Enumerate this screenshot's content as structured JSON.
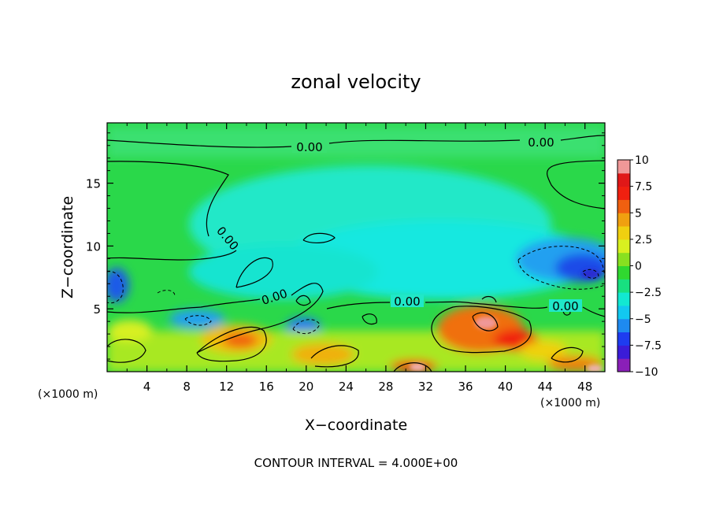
{
  "chart_data": {
    "type": "heatmap",
    "title": "zonal velocity",
    "xlabel": "X−coordinate",
    "ylabel": "Z−coordinate",
    "x_unit_left": "(×1000 m)",
    "x_unit_right": "(×1000 m)",
    "footer": "CONTOUR INTERVAL =  4.000E+00",
    "xlim": [
      0,
      50
    ],
    "ylim": [
      0,
      19.8
    ],
    "x_ticks": [
      4,
      8,
      12,
      16,
      20,
      24,
      28,
      32,
      36,
      40,
      44,
      48
    ],
    "y_ticks": [
      5,
      10,
      15
    ],
    "colorbar": {
      "ticks": [
        "10",
        "7.5",
        "5",
        "2.5",
        "0",
        "−2.5",
        "−5",
        "−7.5",
        "−10"
      ],
      "vmin": -10,
      "vmax": 10,
      "colors": [
        "#8a1fb8",
        "#3b1cd8",
        "#1e3cf0",
        "#1e8af0",
        "#12c8f0",
        "#12e8d2",
        "#18e080",
        "#30d830",
        "#88e020",
        "#d8f020",
        "#f0d010",
        "#f0a010",
        "#f06010",
        "#f02010",
        "#e01818",
        "#f09898"
      ]
    },
    "contour_labels": [
      "0.00",
      "0.00",
      "0.00",
      "0.00",
      "0.00",
      "0.00"
    ],
    "contour_interval": 4.0
  }
}
